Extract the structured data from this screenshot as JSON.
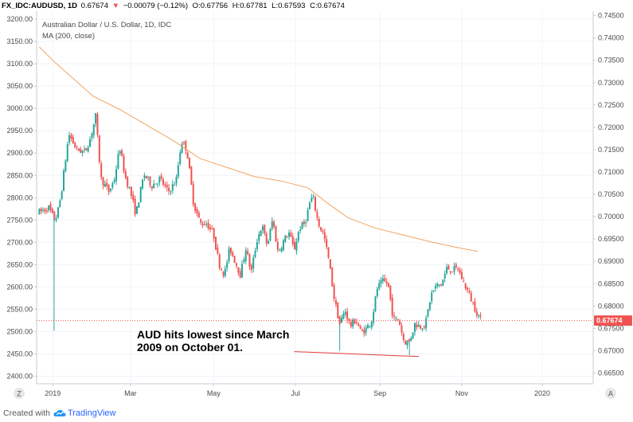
{
  "header": {
    "symbol": "FX_IDC:AUDUSD, 1D",
    "last": "0.67674",
    "change": "−0.00079 (−0.12%)",
    "o_label": "O:",
    "o_value": "0.67756",
    "h_label": "H:",
    "h_value": "0.67781",
    "l_label": "L:",
    "l_value": "0.67593",
    "c_label": "C:",
    "c_value": "0.67674",
    "pair_title": "Australian Dollar / U.S. Dollar, 1D, IDC",
    "indicator": "MA (200, close)"
  },
  "footer": {
    "created_with": "Created with",
    "brand": "TradingView"
  },
  "axis_corner": {
    "left": "Z",
    "right": "A"
  },
  "colors": {
    "up": "#26a69a",
    "down": "#ef5350",
    "ma": "#f4a460",
    "price_line": "#ef5350",
    "price_badge": "#ef5350",
    "annotation_line": "#e53935",
    "up_arrow": "#26a69a",
    "down_arrow": "#ef5350"
  },
  "chart_data": {
    "type": "candlestick",
    "title": "Australian Dollar / U.S. Dollar, 1D, IDC",
    "left_axis": {
      "ticks": [
        "3200.00",
        "3150.00",
        "3100.00",
        "3050.00",
        "3000.00",
        "2950.00",
        "2900.00",
        "2850.00",
        "2800.00",
        "2750.00",
        "2700.00",
        "2650.00",
        "2600.00",
        "2550.00",
        "2500.00",
        "2450.00",
        "2400.00"
      ],
      "range": [
        2383,
        3218
      ]
    },
    "right_axis": {
      "ticks": [
        "0.74500",
        "0.74000",
        "0.73500",
        "0.73000",
        "0.72500",
        "0.72000",
        "0.71500",
        "0.71000",
        "0.70500",
        "0.70000",
        "0.69500",
        "0.69000",
        "0.68500",
        "0.68000",
        "0.67500",
        "0.67000",
        "0.66500"
      ],
      "range": [
        0.6626,
        0.746
      ]
    },
    "x_axis": {
      "ticks": [
        "2019",
        "Mar",
        "May",
        "Jul",
        "Sep",
        "Nov",
        "2020"
      ],
      "tick_days": [
        0,
        58,
        120,
        181,
        244,
        305,
        365
      ],
      "range_days": [
        -12,
        403
      ]
    },
    "last_price": 0.67674,
    "last_price_label": "0.67674",
    "ma_200": {
      "name": "MA (200, close)",
      "points": [
        [
          -10,
          0.738
        ],
        [
          0,
          0.735
        ],
        [
          15,
          0.731
        ],
        [
          30,
          0.727
        ],
        [
          50,
          0.724
        ],
        [
          70,
          0.7205
        ],
        [
          90,
          0.717
        ],
        [
          110,
          0.713
        ],
        [
          130,
          0.711
        ],
        [
          150,
          0.709
        ],
        [
          170,
          0.708
        ],
        [
          190,
          0.7065
        ],
        [
          205,
          0.703
        ],
        [
          220,
          0.6998
        ],
        [
          240,
          0.6975
        ],
        [
          260,
          0.696
        ],
        [
          280,
          0.6945
        ],
        [
          300,
          0.6932
        ],
        [
          317,
          0.6922
        ]
      ]
    },
    "price_path": [
      [
        -10,
        0.701
      ],
      [
        -3,
        0.702
      ],
      [
        1,
        0.6995
      ],
      [
        3,
        0.7
      ],
      [
        6,
        0.7045
      ],
      [
        12,
        0.7185
      ],
      [
        18,
        0.715
      ],
      [
        24,
        0.7145
      ],
      [
        28,
        0.7175
      ],
      [
        32,
        0.7225
      ],
      [
        36,
        0.7085
      ],
      [
        42,
        0.7055
      ],
      [
        46,
        0.7085
      ],
      [
        50,
        0.7155
      ],
      [
        54,
        0.709
      ],
      [
        58,
        0.7055
      ],
      [
        62,
        0.7005
      ],
      [
        68,
        0.7095
      ],
      [
        74,
        0.707
      ],
      [
        80,
        0.7085
      ],
      [
        86,
        0.7055
      ],
      [
        92,
        0.708
      ],
      [
        96,
        0.717
      ],
      [
        100,
        0.715
      ],
      [
        105,
        0.703
      ],
      [
        110,
        0.6985
      ],
      [
        115,
        0.6985
      ],
      [
        120,
        0.696
      ],
      [
        124,
        0.6895
      ],
      [
        128,
        0.687
      ],
      [
        132,
        0.693
      ],
      [
        136,
        0.69
      ],
      [
        140,
        0.687
      ],
      [
        144,
        0.693
      ],
      [
        148,
        0.6875
      ],
      [
        152,
        0.6945
      ],
      [
        156,
        0.698
      ],
      [
        160,
        0.6935
      ],
      [
        164,
        0.6995
      ],
      [
        168,
        0.692
      ],
      [
        172,
        0.6945
      ],
      [
        176,
        0.6965
      ],
      [
        180,
        0.6925
      ],
      [
        184,
        0.6975
      ],
      [
        188,
        0.6985
      ],
      [
        192,
        0.7035
      ],
      [
        194,
        0.7045
      ],
      [
        198,
        0.6985
      ],
      [
        202,
        0.696
      ],
      [
        206,
        0.69
      ],
      [
        210,
        0.6815
      ],
      [
        214,
        0.676
      ],
      [
        218,
        0.679
      ],
      [
        222,
        0.6755
      ],
      [
        226,
        0.677
      ],
      [
        230,
        0.674
      ],
      [
        234,
        0.675
      ],
      [
        238,
        0.677
      ],
      [
        242,
        0.684
      ],
      [
        246,
        0.6855
      ],
      [
        250,
        0.685
      ],
      [
        254,
        0.677
      ],
      [
        258,
        0.677
      ],
      [
        262,
        0.672
      ],
      [
        266,
        0.672
      ],
      [
        270,
        0.676
      ],
      [
        274,
        0.6755
      ],
      [
        278,
        0.676
      ],
      [
        282,
        0.6825
      ],
      [
        286,
        0.6845
      ],
      [
        290,
        0.685
      ],
      [
        294,
        0.6885
      ],
      [
        298,
        0.688
      ],
      [
        302,
        0.6885
      ],
      [
        306,
        0.6855
      ],
      [
        310,
        0.683
      ],
      [
        314,
        0.68
      ],
      [
        318,
        0.6775
      ],
      [
        320,
        0.6767
      ]
    ],
    "spikes": [
      {
        "day": 1,
        "low": 0.6745
      },
      {
        "day": 214,
        "low": 0.67
      },
      {
        "day": 266,
        "low": 0.669
      }
    ],
    "annotation": {
      "text_line1": "AUD hits lowest since March",
      "text_line2": "2009 on October 01.",
      "line_from": [
        180,
        0.6698
      ],
      "line_to": [
        273,
        0.6687
      ]
    }
  }
}
